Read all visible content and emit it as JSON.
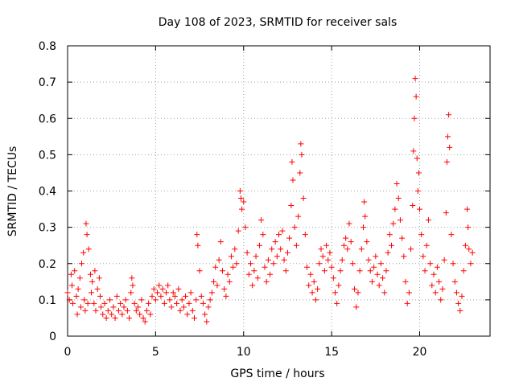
{
  "chart_data": {
    "type": "scatter",
    "title": "Day 108 of 2023, SRMTID for receiver sals",
    "xlabel": "GPS time / hours",
    "ylabel": "SRMTID / TECUs",
    "xlim": [
      0,
      24
    ],
    "ylim": [
      0,
      0.8
    ],
    "xticks": [
      0,
      5,
      10,
      15,
      20
    ],
    "yticks": [
      0,
      0.1,
      0.2,
      0.3,
      0.4,
      0.5,
      0.6,
      0.7,
      0.8
    ],
    "xtick_labels": [
      "0",
      "5",
      "10",
      "15",
      "20"
    ],
    "ytick_labels": [
      "0",
      "0.1",
      "0.2",
      "0.3",
      "0.4",
      "0.5",
      "0.6",
      "0.7",
      "0.8"
    ],
    "grid": true,
    "marker": "+",
    "color": "#ff0000",
    "series": [
      {
        "name": "SRMTID",
        "points": [
          [
            0.0,
            0.12
          ],
          [
            0.1,
            0.1
          ],
          [
            0.2,
            0.17
          ],
          [
            0.25,
            0.14
          ],
          [
            0.3,
            0.09
          ],
          [
            0.4,
            0.18
          ],
          [
            0.5,
            0.11
          ],
          [
            0.55,
            0.06
          ],
          [
            0.6,
            0.13
          ],
          [
            0.7,
            0.16
          ],
          [
            0.75,
            0.08
          ],
          [
            0.8,
            0.2
          ],
          [
            0.9,
            0.23
          ],
          [
            0.95,
            0.1
          ],
          [
            1.0,
            0.07
          ],
          [
            1.05,
            0.31
          ],
          [
            1.1,
            0.28
          ],
          [
            1.15,
            0.09
          ],
          [
            1.2,
            0.24
          ],
          [
            1.3,
            0.17
          ],
          [
            1.35,
            0.12
          ],
          [
            1.4,
            0.15
          ],
          [
            1.5,
            0.09
          ],
          [
            1.55,
            0.18
          ],
          [
            1.6,
            0.07
          ],
          [
            1.7,
            0.13
          ],
          [
            1.8,
            0.16
          ],
          [
            1.85,
            0.11
          ],
          [
            1.9,
            0.08
          ],
          [
            2.0,
            0.06
          ],
          [
            2.1,
            0.09
          ],
          [
            2.2,
            0.05
          ],
          [
            2.3,
            0.07
          ],
          [
            2.4,
            0.1
          ],
          [
            2.5,
            0.06
          ],
          [
            2.6,
            0.08
          ],
          [
            2.7,
            0.05
          ],
          [
            2.8,
            0.11
          ],
          [
            2.9,
            0.07
          ],
          [
            3.0,
            0.09
          ],
          [
            3.1,
            0.06
          ],
          [
            3.2,
            0.08
          ],
          [
            3.3,
            0.1
          ],
          [
            3.4,
            0.07
          ],
          [
            3.5,
            0.05
          ],
          [
            3.6,
            0.12
          ],
          [
            3.65,
            0.16
          ],
          [
            3.7,
            0.14
          ],
          [
            3.8,
            0.09
          ],
          [
            3.9,
            0.07
          ],
          [
            4.0,
            0.08
          ],
          [
            4.1,
            0.06
          ],
          [
            4.2,
            0.1
          ],
          [
            4.3,
            0.05
          ],
          [
            4.4,
            0.04
          ],
          [
            4.5,
            0.07
          ],
          [
            4.6,
            0.09
          ],
          [
            4.7,
            0.06
          ],
          [
            4.8,
            0.11
          ],
          [
            4.9,
            0.13
          ],
          [
            5.0,
            0.1
          ],
          [
            5.1,
            0.12
          ],
          [
            5.2,
            0.14
          ],
          [
            5.3,
            0.11
          ],
          [
            5.4,
            0.13
          ],
          [
            5.5,
            0.09
          ],
          [
            5.6,
            0.12
          ],
          [
            5.7,
            0.14
          ],
          [
            5.8,
            0.1
          ],
          [
            5.9,
            0.08
          ],
          [
            6.0,
            0.12
          ],
          [
            6.1,
            0.11
          ],
          [
            6.2,
            0.09
          ],
          [
            6.3,
            0.13
          ],
          [
            6.4,
            0.07
          ],
          [
            6.5,
            0.1
          ],
          [
            6.6,
            0.08
          ],
          [
            6.7,
            0.11
          ],
          [
            6.8,
            0.06
          ],
          [
            6.9,
            0.09
          ],
          [
            7.0,
            0.12
          ],
          [
            7.1,
            0.07
          ],
          [
            7.2,
            0.05
          ],
          [
            7.3,
            0.1
          ],
          [
            7.35,
            0.28
          ],
          [
            7.4,
            0.25
          ],
          [
            7.5,
            0.18
          ],
          [
            7.6,
            0.11
          ],
          [
            7.7,
            0.09
          ],
          [
            7.8,
            0.06
          ],
          [
            7.9,
            0.04
          ],
          [
            8.0,
            0.08
          ],
          [
            8.1,
            0.1
          ],
          [
            8.2,
            0.12
          ],
          [
            8.3,
            0.15
          ],
          [
            8.4,
            0.19
          ],
          [
            8.5,
            0.14
          ],
          [
            8.6,
            0.21
          ],
          [
            8.7,
            0.26
          ],
          [
            8.8,
            0.18
          ],
          [
            8.9,
            0.13
          ],
          [
            9.0,
            0.11
          ],
          [
            9.1,
            0.17
          ],
          [
            9.2,
            0.15
          ],
          [
            9.3,
            0.22
          ],
          [
            9.4,
            0.19
          ],
          [
            9.5,
            0.24
          ],
          [
            9.6,
            0.2
          ],
          [
            9.7,
            0.29
          ],
          [
            9.8,
            0.4
          ],
          [
            9.85,
            0.38
          ],
          [
            9.9,
            0.35
          ],
          [
            10.0,
            0.37
          ],
          [
            10.1,
            0.3
          ],
          [
            10.2,
            0.23
          ],
          [
            10.3,
            0.17
          ],
          [
            10.4,
            0.2
          ],
          [
            10.5,
            0.14
          ],
          [
            10.6,
            0.18
          ],
          [
            10.7,
            0.22
          ],
          [
            10.8,
            0.16
          ],
          [
            10.9,
            0.25
          ],
          [
            11.0,
            0.32
          ],
          [
            11.1,
            0.28
          ],
          [
            11.2,
            0.19
          ],
          [
            11.3,
            0.15
          ],
          [
            11.4,
            0.21
          ],
          [
            11.5,
            0.17
          ],
          [
            11.6,
            0.24
          ],
          [
            11.7,
            0.2
          ],
          [
            11.8,
            0.26
          ],
          [
            11.9,
            0.22
          ],
          [
            12.0,
            0.28
          ],
          [
            12.1,
            0.24
          ],
          [
            12.2,
            0.29
          ],
          [
            12.3,
            0.21
          ],
          [
            12.4,
            0.18
          ],
          [
            12.5,
            0.23
          ],
          [
            12.6,
            0.27
          ],
          [
            12.7,
            0.36
          ],
          [
            12.75,
            0.48
          ],
          [
            12.8,
            0.43
          ],
          [
            12.9,
            0.3
          ],
          [
            13.0,
            0.25
          ],
          [
            13.1,
            0.33
          ],
          [
            13.2,
            0.45
          ],
          [
            13.25,
            0.53
          ],
          [
            13.3,
            0.5
          ],
          [
            13.4,
            0.38
          ],
          [
            13.5,
            0.28
          ],
          [
            13.6,
            0.19
          ],
          [
            13.7,
            0.14
          ],
          [
            13.8,
            0.17
          ],
          [
            13.9,
            0.12
          ],
          [
            14.0,
            0.15
          ],
          [
            14.1,
            0.1
          ],
          [
            14.2,
            0.13
          ],
          [
            14.3,
            0.2
          ],
          [
            14.4,
            0.24
          ],
          [
            14.5,
            0.22
          ],
          [
            14.6,
            0.18
          ],
          [
            14.7,
            0.25
          ],
          [
            14.8,
            0.21
          ],
          [
            14.9,
            0.23
          ],
          [
            15.0,
            0.19
          ],
          [
            15.1,
            0.16
          ],
          [
            15.2,
            0.12
          ],
          [
            15.3,
            0.09
          ],
          [
            15.4,
            0.14
          ],
          [
            15.5,
            0.18
          ],
          [
            15.6,
            0.21
          ],
          [
            15.7,
            0.25
          ],
          [
            15.8,
            0.27
          ],
          [
            15.9,
            0.24
          ],
          [
            16.0,
            0.31
          ],
          [
            16.1,
            0.26
          ],
          [
            16.2,
            0.2
          ],
          [
            16.3,
            0.13
          ],
          [
            16.4,
            0.08
          ],
          [
            16.5,
            0.12
          ],
          [
            16.6,
            0.18
          ],
          [
            16.7,
            0.24
          ],
          [
            16.8,
            0.3
          ],
          [
            16.85,
            0.37
          ],
          [
            16.9,
            0.33
          ],
          [
            17.0,
            0.26
          ],
          [
            17.1,
            0.21
          ],
          [
            17.2,
            0.18
          ],
          [
            17.3,
            0.15
          ],
          [
            17.4,
            0.19
          ],
          [
            17.5,
            0.22
          ],
          [
            17.6,
            0.17
          ],
          [
            17.7,
            0.14
          ],
          [
            17.8,
            0.2
          ],
          [
            17.9,
            0.16
          ],
          [
            18.0,
            0.12
          ],
          [
            18.1,
            0.18
          ],
          [
            18.2,
            0.23
          ],
          [
            18.3,
            0.28
          ],
          [
            18.4,
            0.25
          ],
          [
            18.5,
            0.31
          ],
          [
            18.6,
            0.35
          ],
          [
            18.7,
            0.42
          ],
          [
            18.8,
            0.38
          ],
          [
            18.9,
            0.32
          ],
          [
            19.0,
            0.27
          ],
          [
            19.1,
            0.22
          ],
          [
            19.2,
            0.15
          ],
          [
            19.3,
            0.09
          ],
          [
            19.4,
            0.12
          ],
          [
            19.5,
            0.24
          ],
          [
            19.6,
            0.36
          ],
          [
            19.65,
            0.51
          ],
          [
            19.7,
            0.6
          ],
          [
            19.75,
            0.71
          ],
          [
            19.8,
            0.66
          ],
          [
            19.85,
            0.49
          ],
          [
            19.9,
            0.4
          ],
          [
            19.95,
            0.45
          ],
          [
            20.0,
            0.35
          ],
          [
            20.1,
            0.28
          ],
          [
            20.2,
            0.22
          ],
          [
            20.3,
            0.18
          ],
          [
            20.4,
            0.25
          ],
          [
            20.5,
            0.32
          ],
          [
            20.6,
            0.2
          ],
          [
            20.7,
            0.14
          ],
          [
            20.8,
            0.17
          ],
          [
            20.9,
            0.12
          ],
          [
            21.0,
            0.19
          ],
          [
            21.1,
            0.15
          ],
          [
            21.2,
            0.1
          ],
          [
            21.3,
            0.13
          ],
          [
            21.4,
            0.21
          ],
          [
            21.5,
            0.34
          ],
          [
            21.55,
            0.48
          ],
          [
            21.6,
            0.55
          ],
          [
            21.65,
            0.61
          ],
          [
            21.7,
            0.52
          ],
          [
            21.8,
            0.28
          ],
          [
            21.9,
            0.2
          ],
          [
            22.0,
            0.15
          ],
          [
            22.1,
            0.12
          ],
          [
            22.2,
            0.09
          ],
          [
            22.3,
            0.07
          ],
          [
            22.4,
            0.11
          ],
          [
            22.5,
            0.18
          ],
          [
            22.6,
            0.25
          ],
          [
            22.7,
            0.35
          ],
          [
            22.75,
            0.3
          ],
          [
            22.8,
            0.24
          ],
          [
            22.9,
            0.2
          ],
          [
            23.0,
            0.23
          ]
        ]
      }
    ]
  }
}
